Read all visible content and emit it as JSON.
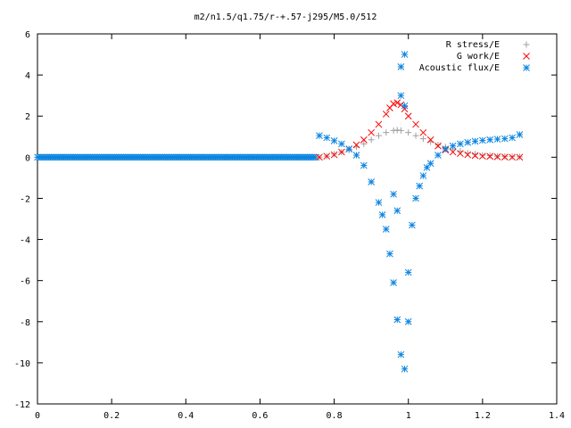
{
  "chart_data": {
    "type": "scatter",
    "title": "m2/n1.5/q1.75/r-+.57-j295/M5.0/512",
    "xlabel": "",
    "ylabel": "",
    "xlim": [
      0,
      1.4
    ],
    "ylim": [
      -12,
      6
    ],
    "x_ticks": [
      "0",
      "0.2",
      "0.4",
      "0.6",
      "0.8",
      "1",
      "1.2",
      "1.4"
    ],
    "y_ticks": [
      "6",
      "4",
      "2",
      "0",
      "-2",
      "-4",
      "-6",
      "-8",
      "-10",
      "-12"
    ],
    "x_tick_values": [
      0,
      0.2,
      0.4,
      0.6,
      0.8,
      1.0,
      1.2,
      1.4
    ],
    "y_tick_values": [
      6,
      4,
      2,
      0,
      -2,
      -4,
      -6,
      -8,
      -10,
      -12
    ],
    "grid": false,
    "legend_position": "top-right",
    "series": [
      {
        "name": "R stress/E",
        "marker": "plus",
        "color": "#a0a0a0",
        "points": [
          [
            0.76,
            0.0
          ],
          [
            0.78,
            0.05
          ],
          [
            0.8,
            0.15
          ],
          [
            0.82,
            0.25
          ],
          [
            0.84,
            0.35
          ],
          [
            0.86,
            0.5
          ],
          [
            0.88,
            0.65
          ],
          [
            0.9,
            0.85
          ],
          [
            0.92,
            1.05
          ],
          [
            0.94,
            1.2
          ],
          [
            0.96,
            1.3
          ],
          [
            0.97,
            1.32
          ],
          [
            0.98,
            1.3
          ],
          [
            1.0,
            1.2
          ],
          [
            1.02,
            1.05
          ],
          [
            1.04,
            0.9
          ],
          [
            1.06,
            0.75
          ],
          [
            1.08,
            0.6
          ],
          [
            1.1,
            0.5
          ],
          [
            1.12,
            0.4
          ],
          [
            1.14,
            0.3
          ],
          [
            1.16,
            0.2
          ],
          [
            1.18,
            0.15
          ],
          [
            1.2,
            0.1
          ],
          [
            1.22,
            0.08
          ],
          [
            1.24,
            0.05
          ],
          [
            1.26,
            0.04
          ],
          [
            1.28,
            0.03
          ],
          [
            1.3,
            0.02
          ]
        ]
      },
      {
        "name": "G work/E",
        "marker": "cross",
        "color": "#ff0000",
        "points": [
          [
            0.76,
            0.0
          ],
          [
            0.78,
            0.05
          ],
          [
            0.8,
            0.12
          ],
          [
            0.82,
            0.25
          ],
          [
            0.84,
            0.4
          ],
          [
            0.86,
            0.6
          ],
          [
            0.88,
            0.85
          ],
          [
            0.9,
            1.2
          ],
          [
            0.92,
            1.6
          ],
          [
            0.94,
            2.1
          ],
          [
            0.95,
            2.4
          ],
          [
            0.96,
            2.6
          ],
          [
            0.97,
            2.65
          ],
          [
            0.98,
            2.55
          ],
          [
            0.99,
            2.35
          ],
          [
            1.0,
            2.0
          ],
          [
            1.02,
            1.6
          ],
          [
            1.04,
            1.2
          ],
          [
            1.06,
            0.85
          ],
          [
            1.08,
            0.55
          ],
          [
            1.1,
            0.35
          ],
          [
            1.12,
            0.25
          ],
          [
            1.14,
            0.18
          ],
          [
            1.16,
            0.12
          ],
          [
            1.18,
            0.08
          ],
          [
            1.2,
            0.05
          ],
          [
            1.22,
            0.04
          ],
          [
            1.24,
            0.02
          ],
          [
            1.26,
            0.01
          ],
          [
            1.28,
            0.0
          ],
          [
            1.3,
            0.0
          ]
        ]
      },
      {
        "name": "Acoustic flux/E",
        "marker": "star",
        "color": "#0a84e0",
        "points": [
          [
            0.76,
            1.05
          ],
          [
            0.78,
            0.95
          ],
          [
            0.8,
            0.8
          ],
          [
            0.82,
            0.65
          ],
          [
            0.84,
            0.4
          ],
          [
            0.86,
            0.1
          ],
          [
            0.88,
            -0.4
          ],
          [
            0.9,
            -1.2
          ],
          [
            0.92,
            -2.2
          ],
          [
            0.93,
            -2.8
          ],
          [
            0.94,
            -3.5
          ],
          [
            0.95,
            -4.7
          ],
          [
            0.96,
            -6.1
          ],
          [
            0.97,
            -7.9
          ],
          [
            0.98,
            -9.6
          ],
          [
            0.99,
            -10.3
          ],
          [
            1.0,
            -8.0
          ],
          [
            1.0,
            -5.6
          ],
          [
            1.01,
            -3.3
          ],
          [
            1.02,
            -2.0
          ],
          [
            1.03,
            -1.4
          ],
          [
            1.04,
            -0.9
          ],
          [
            1.05,
            -0.5
          ],
          [
            1.06,
            -0.3
          ],
          [
            1.08,
            0.1
          ],
          [
            1.1,
            0.4
          ],
          [
            1.12,
            0.55
          ],
          [
            1.14,
            0.65
          ],
          [
            1.16,
            0.72
          ],
          [
            1.18,
            0.78
          ],
          [
            1.2,
            0.82
          ],
          [
            1.22,
            0.85
          ],
          [
            1.24,
            0.88
          ],
          [
            1.26,
            0.9
          ],
          [
            1.28,
            0.95
          ],
          [
            1.3,
            1.1
          ],
          [
            0.98,
            4.4
          ],
          [
            0.99,
            5.0
          ],
          [
            0.98,
            3.0
          ],
          [
            0.99,
            2.5
          ],
          [
            0.96,
            -1.8
          ],
          [
            0.97,
            -2.6
          ]
        ]
      }
    ]
  }
}
